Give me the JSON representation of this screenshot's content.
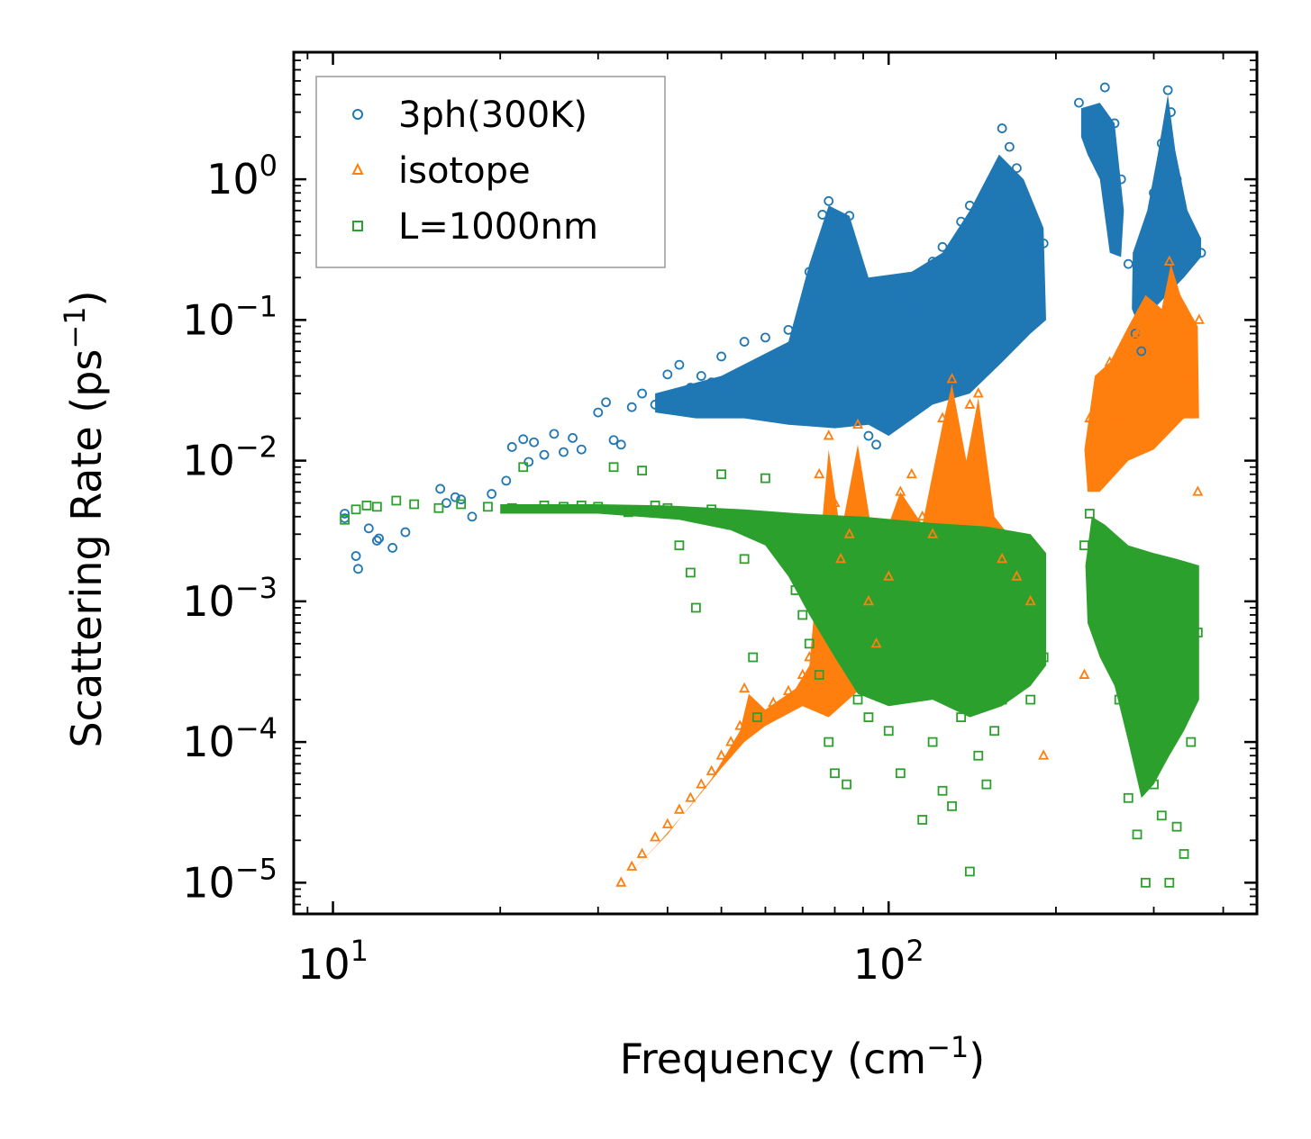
{
  "chart_data": {
    "type": "scatter",
    "xscale": "log",
    "yscale": "log",
    "xlim": [
      8.5,
      460
    ],
    "ylim": [
      6e-06,
      8
    ],
    "xlabel": {
      "base": "Frequency (cm",
      "sup": "−1",
      "tail": ")"
    },
    "ylabel": {
      "base": "Scattering Rate (ps",
      "sup": "−1",
      "tail": ")"
    },
    "xticks": [
      {
        "value": 10,
        "base": "10",
        "exp": "1"
      },
      {
        "value": 100,
        "base": "10",
        "exp": "2"
      }
    ],
    "yticks": [
      {
        "value": 1e-05,
        "base": "10",
        "exp": "−5"
      },
      {
        "value": 0.0001,
        "base": "10",
        "exp": "−4"
      },
      {
        "value": 0.001,
        "base": "10",
        "exp": "−3"
      },
      {
        "value": 0.01,
        "base": "10",
        "exp": "−2"
      },
      {
        "value": 0.1,
        "base": "10",
        "exp": "−1"
      },
      {
        "value": 1,
        "base": "10",
        "exp": "0"
      }
    ],
    "legend_position": "top-left",
    "series": [
      {
        "name": "3ph(300K)",
        "marker": "circle",
        "color": "#1f77b4",
        "points": [
          [
            10.5,
            0.0042
          ],
          [
            10.5,
            0.0039
          ],
          [
            11.0,
            0.0021
          ],
          [
            11.1,
            0.0017
          ],
          [
            11.6,
            0.0033
          ],
          [
            12.0,
            0.0027
          ],
          [
            12.1,
            0.0028
          ],
          [
            12.8,
            0.0024
          ],
          [
            13.5,
            0.0031
          ],
          [
            15.6,
            0.0063
          ],
          [
            16.0,
            0.005
          ],
          [
            16.6,
            0.0055
          ],
          [
            17.0,
            0.0053
          ],
          [
            17.8,
            0.004
          ],
          [
            19.3,
            0.0058
          ],
          [
            20.5,
            0.0072
          ],
          [
            21.0,
            0.0125
          ],
          [
            22.0,
            0.0142
          ],
          [
            22.5,
            0.0098
          ],
          [
            23.0,
            0.0135
          ],
          [
            24.0,
            0.011
          ],
          [
            25.0,
            0.0155
          ],
          [
            26.0,
            0.0115
          ],
          [
            27.0,
            0.0145
          ],
          [
            28.0,
            0.012
          ],
          [
            30.0,
            0.022
          ],
          [
            31.0,
            0.026
          ],
          [
            32.0,
            0.014
          ],
          [
            33.0,
            0.013
          ],
          [
            34.5,
            0.024
          ],
          [
            36.0,
            0.03
          ],
          [
            38.0,
            0.025
          ],
          [
            40.0,
            0.041
          ],
          [
            42.0,
            0.048
          ],
          [
            44.0,
            0.033
          ],
          [
            46.0,
            0.04
          ],
          [
            48.0,
            0.036
          ],
          [
            50.0,
            0.055
          ],
          [
            52.0,
            0.032
          ],
          [
            55.0,
            0.07
          ],
          [
            58.0,
            0.045
          ],
          [
            60.0,
            0.075
          ],
          [
            63.0,
            0.05
          ],
          [
            66.0,
            0.085
          ],
          [
            70.0,
            0.12
          ],
          [
            72.0,
            0.22
          ],
          [
            74.0,
            0.14
          ],
          [
            76.0,
            0.56
          ],
          [
            78.0,
            0.7
          ],
          [
            80.0,
            0.3
          ],
          [
            82.0,
            0.45
          ],
          [
            85.0,
            0.55
          ],
          [
            88.0,
            0.2
          ],
          [
            92.0,
            0.015
          ],
          [
            95.0,
            0.013
          ],
          [
            100.0,
            0.02
          ],
          [
            105.0,
            0.15
          ],
          [
            110.0,
            0.12
          ],
          [
            115.0,
            0.2
          ],
          [
            120.0,
            0.26
          ],
          [
            125.0,
            0.33
          ],
          [
            130.0,
            0.28
          ],
          [
            135.0,
            0.5
          ],
          [
            140.0,
            0.65
          ],
          [
            150.0,
            0.8
          ],
          [
            160.0,
            2.3
          ],
          [
            165.0,
            1.7
          ],
          [
            170.0,
            1.2
          ],
          [
            175.0,
            0.6
          ],
          [
            180.0,
            0.4
          ],
          [
            185.0,
            0.3
          ],
          [
            190.0,
            0.35
          ],
          [
            220.0,
            3.5
          ],
          [
            228.0,
            2.3
          ],
          [
            235.0,
            3.0
          ],
          [
            245.0,
            4.5
          ],
          [
            255.0,
            2.5
          ],
          [
            262.0,
            1.0
          ],
          [
            270.0,
            0.25
          ],
          [
            278.0,
            0.08
          ],
          [
            285.0,
            0.06
          ],
          [
            292.0,
            0.35
          ],
          [
            300.0,
            0.8
          ],
          [
            310.0,
            1.8
          ],
          [
            318.0,
            4.3
          ],
          [
            322.0,
            3.0
          ],
          [
            330.0,
            1.0
          ],
          [
            340.0,
            0.5
          ],
          [
            350.0,
            0.4
          ],
          [
            365.0,
            0.3
          ]
        ]
      },
      {
        "name": "isotope",
        "marker": "triangle",
        "color": "#ff7f0e",
        "points": [
          [
            33.0,
            1e-05
          ],
          [
            34.5,
            1.3e-05
          ],
          [
            36.0,
            1.6e-05
          ],
          [
            38.0,
            2.1e-05
          ],
          [
            40.0,
            2.6e-05
          ],
          [
            42.0,
            3.3e-05
          ],
          [
            44.0,
            4e-05
          ],
          [
            46.0,
            5e-05
          ],
          [
            48.0,
            6.2e-05
          ],
          [
            50.0,
            8e-05
          ],
          [
            52.0,
            0.0001
          ],
          [
            54.0,
            0.00013
          ],
          [
            55.0,
            0.00024
          ],
          [
            56.0,
            0.00016
          ],
          [
            58.0,
            0.00015
          ],
          [
            62.0,
            0.00019
          ],
          [
            66.0,
            0.00023
          ],
          [
            70.0,
            0.0003
          ],
          [
            72.0,
            0.0004
          ],
          [
            75.0,
            0.008
          ],
          [
            78.0,
            0.015
          ],
          [
            80.0,
            0.005
          ],
          [
            82.0,
            0.002
          ],
          [
            85.0,
            0.003
          ],
          [
            88.0,
            0.018
          ],
          [
            92.0,
            0.001
          ],
          [
            95.0,
            0.0005
          ],
          [
            100.0,
            0.0015
          ],
          [
            105.0,
            0.006
          ],
          [
            110.0,
            0.008
          ],
          [
            115.0,
            0.004
          ],
          [
            120.0,
            0.003
          ],
          [
            125.0,
            0.02
          ],
          [
            130.0,
            0.038
          ],
          [
            135.0,
            0.01
          ],
          [
            140.0,
            0.025
          ],
          [
            145.0,
            0.03
          ],
          [
            150.0,
            0.004
          ],
          [
            160.0,
            0.002
          ],
          [
            170.0,
            0.0015
          ],
          [
            180.0,
            0.001
          ],
          [
            190.0,
            8e-05
          ],
          [
            225.0,
            0.0003
          ],
          [
            230.0,
            0.02
          ],
          [
            240.0,
            0.035
          ],
          [
            250.0,
            0.05
          ],
          [
            260.0,
            0.02
          ],
          [
            270.0,
            0.06
          ],
          [
            280.0,
            0.08
          ],
          [
            290.0,
            0.12
          ],
          [
            300.0,
            0.03
          ],
          [
            310.0,
            0.1
          ],
          [
            320.0,
            0.26
          ],
          [
            330.0,
            0.15
          ],
          [
            340.0,
            0.08
          ],
          [
            350.0,
            0.04
          ],
          [
            360.0,
            0.006
          ],
          [
            362.0,
            0.1
          ]
        ]
      },
      {
        "name": "L=1000nm",
        "marker": "square",
        "color": "#2ca02c",
        "points": [
          [
            10.5,
            0.0038
          ],
          [
            11.0,
            0.0045
          ],
          [
            11.5,
            0.0048
          ],
          [
            12.0,
            0.0047
          ],
          [
            13.0,
            0.0052
          ],
          [
            14.0,
            0.0049
          ],
          [
            15.5,
            0.0046
          ],
          [
            17.0,
            0.0049
          ],
          [
            19.0,
            0.0047
          ],
          [
            21.0,
            0.0046
          ],
          [
            22.0,
            0.009
          ],
          [
            24.0,
            0.0048
          ],
          [
            26.0,
            0.0047
          ],
          [
            28.0,
            0.0048
          ],
          [
            30.0,
            0.0047
          ],
          [
            32.0,
            0.009
          ],
          [
            34.0,
            0.0043
          ],
          [
            36.0,
            0.0085
          ],
          [
            38.0,
            0.0048
          ],
          [
            40.0,
            0.0046
          ],
          [
            42.0,
            0.0025
          ],
          [
            44.0,
            0.0016
          ],
          [
            45.0,
            0.0009
          ],
          [
            48.0,
            0.0045
          ],
          [
            50.0,
            0.008
          ],
          [
            52.0,
            0.0035
          ],
          [
            55.0,
            0.002
          ],
          [
            57.0,
            0.0004
          ],
          [
            58.0,
            0.00015
          ],
          [
            60.0,
            0.0075
          ],
          [
            62.0,
            0.003
          ],
          [
            65.0,
            0.002
          ],
          [
            68.0,
            0.0012
          ],
          [
            70.0,
            0.0008
          ],
          [
            72.0,
            0.0005
          ],
          [
            75.0,
            0.0003
          ],
          [
            78.0,
            0.0001
          ],
          [
            80.0,
            6e-05
          ],
          [
            84.0,
            5e-05
          ],
          [
            88.0,
            0.0002
          ],
          [
            92.0,
            0.00015
          ],
          [
            96.0,
            0.0003
          ],
          [
            100.0,
            0.00012
          ],
          [
            105.0,
            6e-05
          ],
          [
            110.0,
            0.00025
          ],
          [
            115.0,
            2.8e-05
          ],
          [
            120.0,
            0.0001
          ],
          [
            125.0,
            4.5e-05
          ],
          [
            130.0,
            3.5e-05
          ],
          [
            135.0,
            0.00015
          ],
          [
            140.0,
            1.2e-05
          ],
          [
            145.0,
            8e-05
          ],
          [
            150.0,
            5e-05
          ],
          [
            155.0,
            0.00012
          ],
          [
            160.0,
            0.0002
          ],
          [
            170.0,
            0.0003
          ],
          [
            180.0,
            0.0002
          ],
          [
            190.0,
            0.0004
          ],
          [
            225.0,
            0.0025
          ],
          [
            230.0,
            0.0042
          ],
          [
            240.0,
            0.003
          ],
          [
            250.0,
            0.001
          ],
          [
            260.0,
            0.0002
          ],
          [
            270.0,
            4e-05
          ],
          [
            280.0,
            2.2e-05
          ],
          [
            290.0,
            1e-05
          ],
          [
            300.0,
            5e-05
          ],
          [
            310.0,
            3e-05
          ],
          [
            320.0,
            1e-05
          ],
          [
            330.0,
            2.5e-05
          ],
          [
            340.0,
            1.6e-05
          ],
          [
            350.0,
            0.0001
          ],
          [
            360.0,
            0.0006
          ]
        ]
      }
    ]
  }
}
